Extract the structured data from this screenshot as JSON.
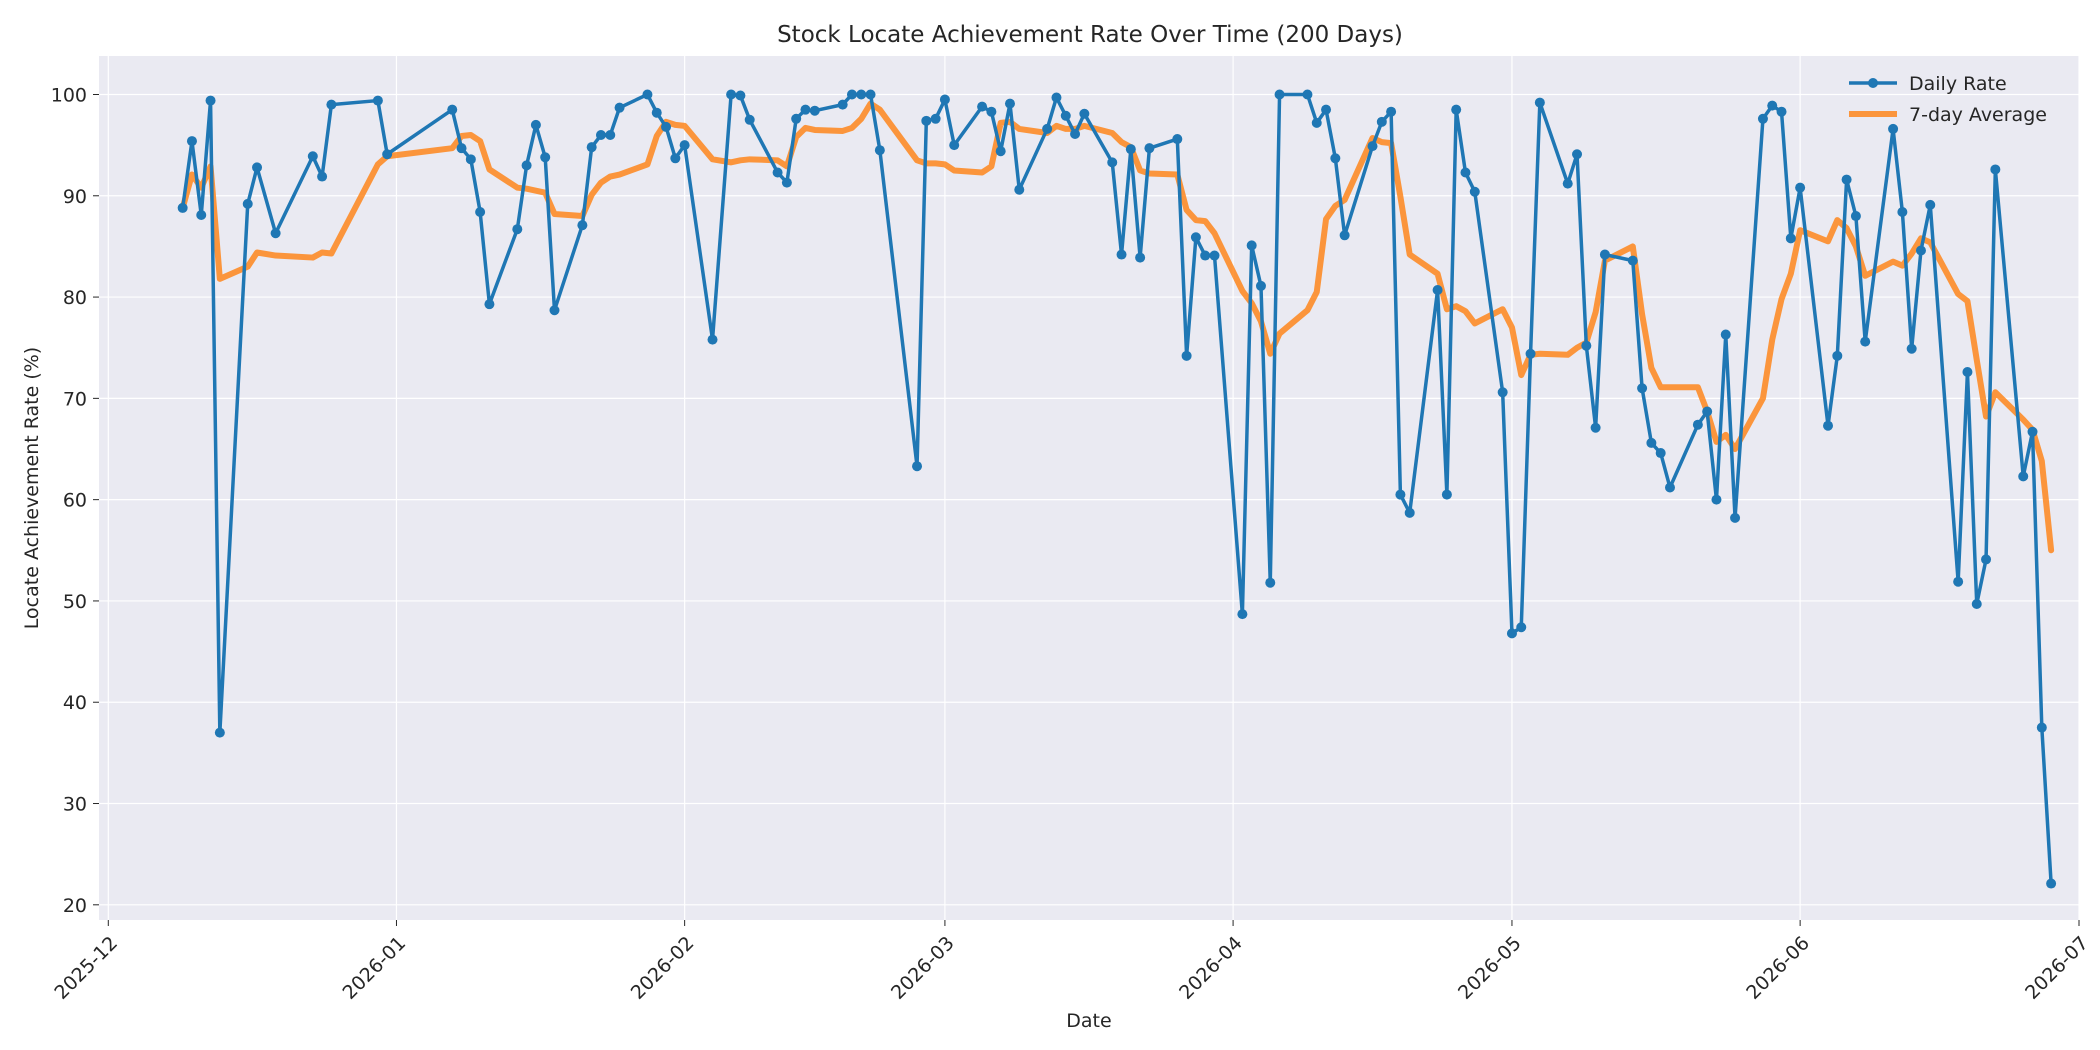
{
  "chart_data": {
    "type": "line",
    "title": "Stock Locate Achievement Rate Over Time (200 Days)",
    "xlabel": "Date",
    "ylabel": "Locate Achievement Rate (%)",
    "x_ticks": [
      "2025-12",
      "2026-01",
      "2026-02",
      "2026-03",
      "2026-04",
      "2026-05",
      "2026-06",
      "2026-07"
    ],
    "y_ticks": [
      20,
      30,
      40,
      50,
      60,
      70,
      80,
      90,
      100
    ],
    "xlim": [
      "2025-11-30",
      "2026-07-01"
    ],
    "ylim": [
      18.5,
      103.8
    ],
    "grid": true,
    "legend_position": "top-right",
    "colors": {
      "daily": "#1f77b4",
      "average": "#ff7f0e",
      "background": "#eaeaf2"
    },
    "series": [
      {
        "name": "Daily Rate",
        "marker": "circle",
        "points": [
          [
            "2025-12-09",
            88.8
          ],
          [
            "2025-12-10",
            95.4
          ],
          [
            "2025-12-11",
            88.1
          ],
          [
            "2025-12-12",
            99.4
          ],
          [
            "2025-12-13",
            37.0
          ],
          [
            "2025-12-16",
            89.2
          ],
          [
            "2025-12-17",
            92.8
          ],
          [
            "2025-12-19",
            86.3
          ],
          [
            "2025-12-23",
            93.9
          ],
          [
            "2025-12-24",
            91.9
          ],
          [
            "2025-12-25",
            99.0
          ],
          [
            "2025-12-30",
            99.4
          ],
          [
            "2025-12-31",
            94.1
          ],
          [
            "2026-01-07",
            98.5
          ],
          [
            "2026-01-08",
            94.7
          ],
          [
            "2026-01-09",
            93.6
          ],
          [
            "2026-01-10",
            88.4
          ],
          [
            "2026-01-11",
            79.3
          ],
          [
            "2026-01-14",
            86.7
          ],
          [
            "2026-01-15",
            93.0
          ],
          [
            "2026-01-16",
            97.0
          ],
          [
            "2026-01-17",
            93.8
          ],
          [
            "2026-01-18",
            78.7
          ],
          [
            "2026-01-21",
            87.1
          ],
          [
            "2026-01-22",
            94.8
          ],
          [
            "2026-01-23",
            96.0
          ],
          [
            "2026-01-24",
            96.0
          ],
          [
            "2026-01-25",
            98.7
          ],
          [
            "2026-01-28",
            100.0
          ],
          [
            "2026-01-29",
            98.2
          ],
          [
            "2026-01-30",
            96.8
          ],
          [
            "2026-01-31",
            93.7
          ],
          [
            "2026-02-01",
            95.0
          ],
          [
            "2026-02-04",
            75.8
          ],
          [
            "2026-02-06",
            100.0
          ],
          [
            "2026-02-07",
            99.9
          ],
          [
            "2026-02-08",
            97.5
          ],
          [
            "2026-02-11",
            92.3
          ],
          [
            "2026-02-12",
            91.3
          ],
          [
            "2026-02-13",
            97.6
          ],
          [
            "2026-02-14",
            98.5
          ],
          [
            "2026-02-15",
            98.4
          ],
          [
            "2026-02-18",
            99.0
          ],
          [
            "2026-02-19",
            100.0
          ],
          [
            "2026-02-20",
            100.0
          ],
          [
            "2026-02-21",
            100.0
          ],
          [
            "2026-02-22",
            94.5
          ],
          [
            "2026-02-26",
            63.3
          ],
          [
            "2026-02-27",
            97.4
          ],
          [
            "2026-02-28",
            97.6
          ],
          [
            "2026-03-01",
            99.5
          ],
          [
            "2026-03-02",
            95.0
          ],
          [
            "2026-03-05",
            98.8
          ],
          [
            "2026-03-06",
            98.3
          ],
          [
            "2026-03-07",
            94.4
          ],
          [
            "2026-03-08",
            99.1
          ],
          [
            "2026-03-09",
            90.6
          ],
          [
            "2026-03-12",
            96.6
          ],
          [
            "2026-03-13",
            99.7
          ],
          [
            "2026-03-14",
            97.9
          ],
          [
            "2026-03-15",
            96.1
          ],
          [
            "2026-03-16",
            98.1
          ],
          [
            "2026-03-19",
            93.3
          ],
          [
            "2026-03-20",
            84.2
          ],
          [
            "2026-03-21",
            94.6
          ],
          [
            "2026-03-22",
            83.9
          ],
          [
            "2026-03-23",
            94.7
          ],
          [
            "2026-03-26",
            95.6
          ],
          [
            "2026-03-27",
            74.2
          ],
          [
            "2026-03-28",
            85.9
          ],
          [
            "2026-03-29",
            84.1
          ],
          [
            "2026-03-30",
            84.1
          ],
          [
            "2026-04-02",
            48.7
          ],
          [
            "2026-04-03",
            85.1
          ],
          [
            "2026-04-04",
            81.1
          ],
          [
            "2026-04-05",
            51.8
          ],
          [
            "2026-04-06",
            100.0
          ],
          [
            "2026-04-09",
            100.0
          ],
          [
            "2026-04-10",
            97.2
          ],
          [
            "2026-04-11",
            98.5
          ],
          [
            "2026-04-12",
            93.7
          ],
          [
            "2026-04-13",
            86.1
          ],
          [
            "2026-04-16",
            94.9
          ],
          [
            "2026-04-17",
            97.3
          ],
          [
            "2026-04-18",
            98.3
          ],
          [
            "2026-04-19",
            60.5
          ],
          [
            "2026-04-20",
            58.7
          ],
          [
            "2026-04-23",
            80.7
          ],
          [
            "2026-04-24",
            60.5
          ],
          [
            "2026-04-25",
            98.5
          ],
          [
            "2026-04-26",
            92.3
          ],
          [
            "2026-04-27",
            90.4
          ],
          [
            "2026-04-30",
            70.6
          ],
          [
            "2026-05-01",
            46.8
          ],
          [
            "2026-05-02",
            47.4
          ],
          [
            "2026-05-03",
            74.4
          ],
          [
            "2026-05-04",
            99.2
          ],
          [
            "2026-05-07",
            91.2
          ],
          [
            "2026-05-08",
            94.1
          ],
          [
            "2026-05-09",
            75.2
          ],
          [
            "2026-05-10",
            67.1
          ],
          [
            "2026-05-11",
            84.2
          ],
          [
            "2026-05-14",
            83.6
          ],
          [
            "2026-05-15",
            71.0
          ],
          [
            "2026-05-16",
            65.6
          ],
          [
            "2026-05-17",
            64.6
          ],
          [
            "2026-05-18",
            61.2
          ],
          [
            "2026-05-21",
            67.4
          ],
          [
            "2026-05-22",
            68.7
          ],
          [
            "2026-05-23",
            60.0
          ],
          [
            "2026-05-24",
            76.3
          ],
          [
            "2026-05-25",
            58.2
          ],
          [
            "2026-05-28",
            97.6
          ],
          [
            "2026-05-29",
            98.9
          ],
          [
            "2026-05-30",
            98.3
          ],
          [
            "2026-05-31",
            85.8
          ],
          [
            "2026-06-01",
            90.8
          ],
          [
            "2026-06-04",
            67.3
          ],
          [
            "2026-06-05",
            74.2
          ],
          [
            "2026-06-06",
            91.6
          ],
          [
            "2026-06-07",
            88.0
          ],
          [
            "2026-06-08",
            75.6
          ],
          [
            "2026-06-11",
            96.6
          ],
          [
            "2026-06-12",
            88.4
          ],
          [
            "2026-06-13",
            74.9
          ],
          [
            "2026-06-14",
            84.6
          ],
          [
            "2026-06-15",
            89.1
          ],
          [
            "2026-06-18",
            51.9
          ],
          [
            "2026-06-19",
            72.6
          ],
          [
            "2026-06-20",
            49.7
          ],
          [
            "2026-06-21",
            54.1
          ],
          [
            "2026-06-22",
            92.6
          ],
          [
            "2026-06-25",
            62.3
          ],
          [
            "2026-06-26",
            66.7
          ],
          [
            "2026-06-27",
            37.5
          ],
          [
            "2026-06-28",
            22.1
          ]
        ]
      },
      {
        "name": "7-day Average",
        "points": [
          [
            "2025-12-09",
            88.8
          ],
          [
            "2025-12-10",
            92.1
          ],
          [
            "2025-12-11",
            90.8
          ],
          [
            "2025-12-12",
            92.9
          ],
          [
            "2025-12-13",
            81.8
          ],
          [
            "2025-12-16",
            83.0
          ],
          [
            "2025-12-17",
            84.4
          ],
          [
            "2025-12-19",
            84.1
          ],
          [
            "2025-12-23",
            83.9
          ],
          [
            "2025-12-24",
            84.4
          ],
          [
            "2025-12-25",
            84.3
          ],
          [
            "2025-12-30",
            93.1
          ],
          [
            "2025-12-31",
            93.9
          ],
          [
            "2026-01-07",
            94.7
          ],
          [
            "2026-01-08",
            95.9
          ],
          [
            "2026-01-09",
            96.0
          ],
          [
            "2026-01-10",
            95.4
          ],
          [
            "2026-01-11",
            92.6
          ],
          [
            "2026-01-14",
            90.8
          ],
          [
            "2026-01-15",
            90.7
          ],
          [
            "2026-01-16",
            90.5
          ],
          [
            "2026-01-17",
            90.3
          ],
          [
            "2026-01-18",
            88.2
          ],
          [
            "2026-01-21",
            88.0
          ],
          [
            "2026-01-22",
            90.1
          ],
          [
            "2026-01-23",
            91.3
          ],
          [
            "2026-01-24",
            91.9
          ],
          [
            "2026-01-25",
            92.1
          ],
          [
            "2026-01-28",
            93.1
          ],
          [
            "2026-01-29",
            95.9
          ],
          [
            "2026-01-30",
            97.3
          ],
          [
            "2026-01-31",
            97.0
          ],
          [
            "2026-02-01",
            96.9
          ],
          [
            "2026-02-04",
            93.6
          ],
          [
            "2026-02-06",
            93.3
          ],
          [
            "2026-02-07",
            93.5
          ],
          [
            "2026-02-08",
            93.6
          ],
          [
            "2026-02-11",
            93.5
          ],
          [
            "2026-02-12",
            92.9
          ],
          [
            "2026-02-13",
            95.8
          ],
          [
            "2026-02-14",
            96.7
          ],
          [
            "2026-02-15",
            96.5
          ],
          [
            "2026-02-18",
            96.4
          ],
          [
            "2026-02-19",
            96.7
          ],
          [
            "2026-02-20",
            97.6
          ],
          [
            "2026-02-21",
            99.1
          ],
          [
            "2026-02-22",
            98.5
          ],
          [
            "2026-02-26",
            93.5
          ],
          [
            "2026-02-27",
            93.2
          ],
          [
            "2026-02-28",
            93.2
          ],
          [
            "2026-03-01",
            93.1
          ],
          [
            "2026-03-02",
            92.5
          ],
          [
            "2026-03-05",
            92.3
          ],
          [
            "2026-03-06",
            92.9
          ],
          [
            "2026-03-07",
            97.2
          ],
          [
            "2026-03-08",
            97.3
          ],
          [
            "2026-03-09",
            96.6
          ],
          [
            "2026-03-12",
            96.2
          ],
          [
            "2026-03-13",
            96.9
          ],
          [
            "2026-03-14",
            96.6
          ],
          [
            "2026-03-15",
            96.6
          ],
          [
            "2026-03-16",
            96.9
          ],
          [
            "2026-03-19",
            96.2
          ],
          [
            "2026-03-20",
            95.3
          ],
          [
            "2026-03-21",
            94.8
          ],
          [
            "2026-03-22",
            92.5
          ],
          [
            "2026-03-23",
            92.2
          ],
          [
            "2026-03-26",
            92.1
          ],
          [
            "2026-03-27",
            88.6
          ],
          [
            "2026-03-28",
            87.6
          ],
          [
            "2026-03-29",
            87.5
          ],
          [
            "2026-03-30",
            86.3
          ],
          [
            "2026-04-02",
            80.6
          ],
          [
            "2026-04-03",
            79.4
          ],
          [
            "2026-04-04",
            77.6
          ],
          [
            "2026-04-05",
            74.4
          ],
          [
            "2026-04-06",
            76.4
          ],
          [
            "2026-04-09",
            78.7
          ],
          [
            "2026-04-10",
            80.5
          ],
          [
            "2026-04-11",
            87.7
          ],
          [
            "2026-04-12",
            89.0
          ],
          [
            "2026-04-13",
            89.6
          ],
          [
            "2026-04-16",
            95.7
          ],
          [
            "2026-04-17",
            95.3
          ],
          [
            "2026-04-18",
            95.2
          ],
          [
            "2026-04-19",
            89.9
          ],
          [
            "2026-04-20",
            84.2
          ],
          [
            "2026-04-23",
            82.3
          ],
          [
            "2026-04-24",
            78.8
          ],
          [
            "2026-04-25",
            79.1
          ],
          [
            "2026-04-26",
            78.6
          ],
          [
            "2026-04-27",
            77.4
          ],
          [
            "2026-04-30",
            78.8
          ],
          [
            "2026-05-01",
            77.0
          ],
          [
            "2026-05-02",
            72.3
          ],
          [
            "2026-05-03",
            74.3
          ],
          [
            "2026-05-04",
            74.4
          ],
          [
            "2026-05-07",
            74.3
          ],
          [
            "2026-05-08",
            75.0
          ],
          [
            "2026-05-09",
            75.5
          ],
          [
            "2026-05-10",
            78.5
          ],
          [
            "2026-05-11",
            83.6
          ],
          [
            "2026-05-14",
            85.0
          ],
          [
            "2026-05-15",
            78.3
          ],
          [
            "2026-05-16",
            73.0
          ],
          [
            "2026-05-17",
            71.1
          ],
          [
            "2026-05-18",
            71.1
          ],
          [
            "2026-05-21",
            71.1
          ],
          [
            "2026-05-22",
            68.7
          ],
          [
            "2026-05-23",
            65.7
          ],
          [
            "2026-05-24",
            66.4
          ],
          [
            "2026-05-25",
            65.0
          ],
          [
            "2026-05-28",
            70.0
          ],
          [
            "2026-05-29",
            75.8
          ],
          [
            "2026-05-30",
            79.8
          ],
          [
            "2026-05-31",
            82.3
          ],
          [
            "2026-06-01",
            86.6
          ],
          [
            "2026-06-04",
            85.5
          ],
          [
            "2026-06-05",
            87.6
          ],
          [
            "2026-06-06",
            86.8
          ],
          [
            "2026-06-07",
            85.0
          ],
          [
            "2026-06-08",
            82.1
          ],
          [
            "2026-06-11",
            83.5
          ],
          [
            "2026-06-12",
            83.1
          ],
          [
            "2026-06-13",
            84.3
          ],
          [
            "2026-06-14",
            85.8
          ],
          [
            "2026-06-15",
            85.4
          ],
          [
            "2026-06-18",
            80.3
          ],
          [
            "2026-06-19",
            79.6
          ],
          [
            "2026-06-20",
            73.8
          ],
          [
            "2026-06-21",
            68.2
          ],
          [
            "2026-06-22",
            70.6
          ],
          [
            "2026-06-25",
            67.9
          ],
          [
            "2026-06-26",
            66.9
          ],
          [
            "2026-06-27",
            63.8
          ],
          [
            "2026-06-28",
            55.0
          ]
        ]
      }
    ]
  }
}
